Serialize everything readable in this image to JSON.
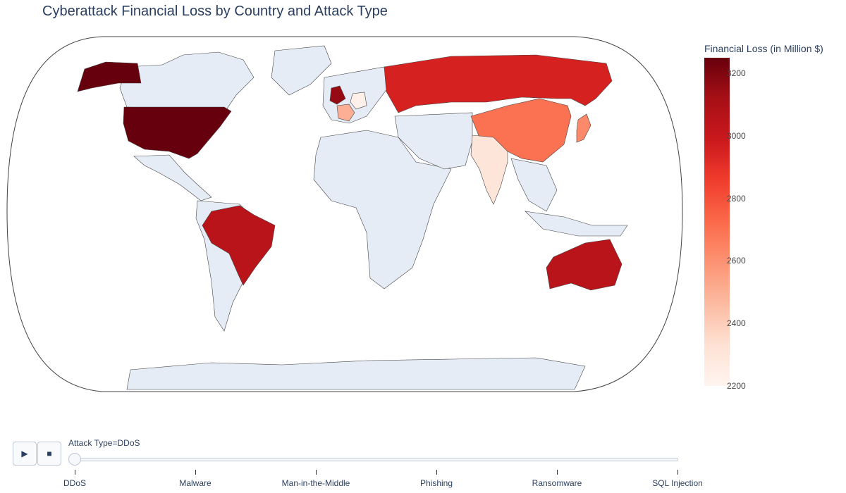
{
  "chart_data": {
    "type": "choropleth",
    "title": "Cyberattack Financial Loss by Country and Attack Type",
    "colorbar": {
      "title": "Financial Loss (in Million $)",
      "range": [
        2200,
        3250
      ],
      "ticks": [
        3200,
        3000,
        2800,
        2600,
        2400,
        2200
      ],
      "colorscale": "Reds"
    },
    "frame": "Attack Type=DDoS",
    "series": [
      {
        "country": "USA",
        "value": 3250
      },
      {
        "country": "UK",
        "value": 3150
      },
      {
        "country": "Brazil",
        "value": 3050
      },
      {
        "country": "Australia",
        "value": 3050
      },
      {
        "country": "Russia",
        "value": 2950
      },
      {
        "country": "China",
        "value": 2700
      },
      {
        "country": "Japan",
        "value": 2620
      },
      {
        "country": "France",
        "value": 2500
      },
      {
        "country": "India",
        "value": 2300
      },
      {
        "country": "Germany",
        "value": 2230
      }
    ]
  },
  "controls": {
    "play_icon": "▶",
    "stop_icon": "■",
    "slider_label": "Attack Type=DDoS",
    "steps": [
      "DDoS",
      "Malware",
      "Man-in-the-Middle",
      "Phishing",
      "Ransomware",
      "SQL Injection"
    ],
    "active_step": 0
  }
}
